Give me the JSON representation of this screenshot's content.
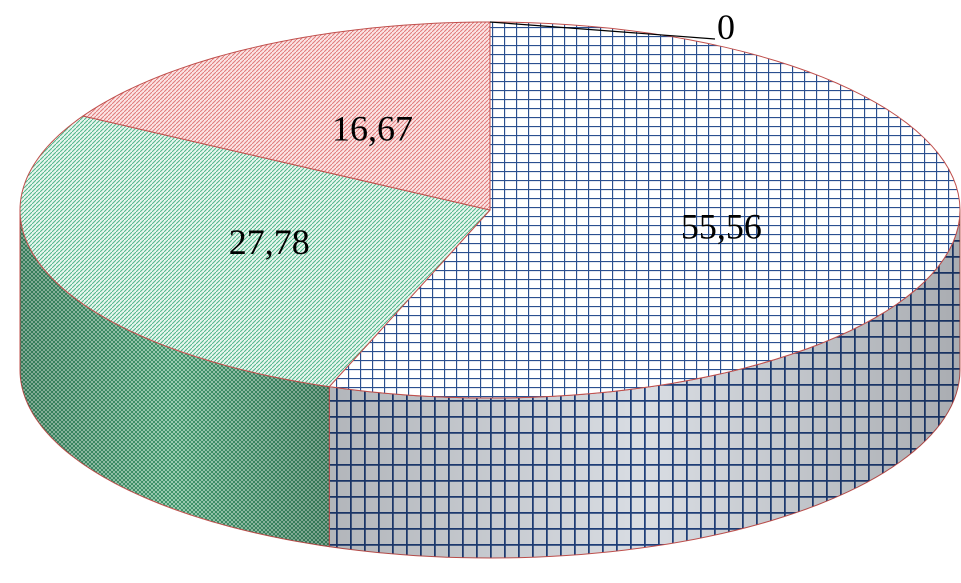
{
  "chart_data": {
    "type": "pie",
    "style": "3d",
    "title": "",
    "slices": [
      {
        "value": 55.56,
        "label": "55,56",
        "pattern": "blue-grid",
        "color": "#1f3f7a"
      },
      {
        "value": 27.78,
        "label": "27,78",
        "pattern": "green-diagonal",
        "color": "#2e9a6a"
      },
      {
        "value": 16.67,
        "label": "16,67",
        "pattern": "red-diagonal",
        "color": "#d94a4a"
      },
      {
        "value": 0,
        "label": "0",
        "pattern": "none",
        "color": "#000000"
      }
    ],
    "border_color": "#c0504d",
    "legend": "none"
  }
}
